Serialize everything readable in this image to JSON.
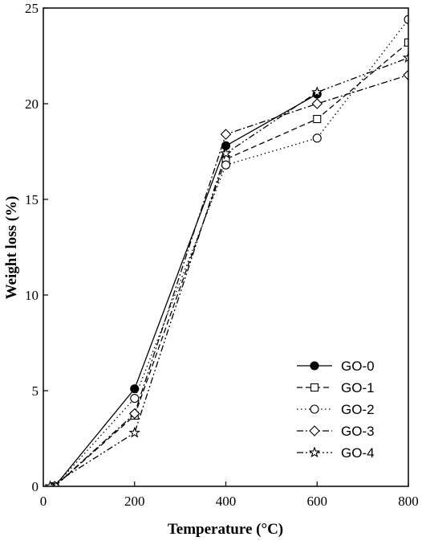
{
  "chart_data": {
    "type": "line",
    "title": "",
    "xlabel": "Temperature (°C)",
    "ylabel": "Weight loss (%)",
    "xlim": [
      0,
      800
    ],
    "ylim": [
      0,
      25
    ],
    "xticks": [
      0,
      200,
      400,
      600,
      800
    ],
    "yticks": [
      0,
      5,
      10,
      15,
      20,
      25
    ],
    "grid": false,
    "legend_position": "bottom-right",
    "series": [
      {
        "name": "GO-0",
        "marker": "filled-circle",
        "dash": "solid",
        "x": [
          25,
          200,
          400,
          600
        ],
        "y": [
          0,
          5.1,
          17.8,
          20.5
        ]
      },
      {
        "name": "GO-1",
        "marker": "open-square",
        "dash": "dashed",
        "x": [
          25,
          200,
          400,
          600,
          800
        ],
        "y": [
          0,
          3.7,
          17.1,
          19.2,
          23.2
        ]
      },
      {
        "name": "GO-2",
        "marker": "open-circle",
        "dash": "dotted",
        "x": [
          25,
          200,
          400,
          600,
          800
        ],
        "y": [
          0,
          4.6,
          16.8,
          18.2,
          24.4
        ]
      },
      {
        "name": "GO-3",
        "marker": "open-diamond",
        "dash": "dashdot",
        "x": [
          25,
          200,
          400,
          600,
          800
        ],
        "y": [
          0,
          3.8,
          18.4,
          20.0,
          21.5
        ]
      },
      {
        "name": "GO-4",
        "marker": "open-star",
        "dash": "dashdotdot",
        "x": [
          15,
          200,
          400,
          600,
          800
        ],
        "y": [
          0,
          2.8,
          17.4,
          20.6,
          22.4
        ]
      }
    ]
  }
}
